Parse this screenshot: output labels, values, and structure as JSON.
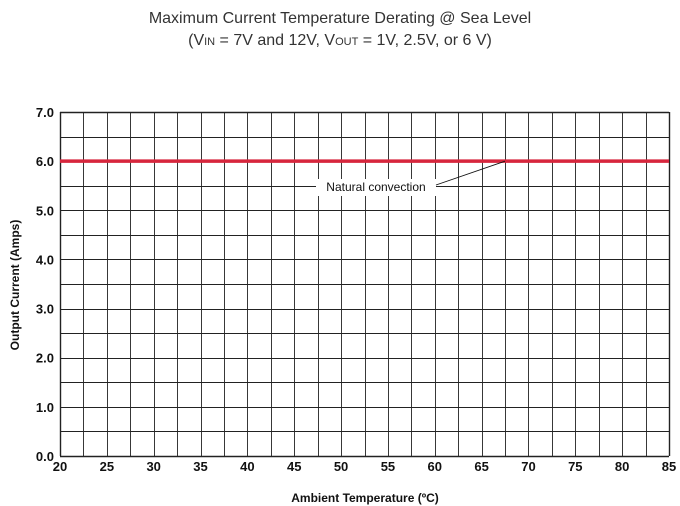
{
  "chart_data": {
    "type": "line",
    "title": "Maximum Current Temperature Derating @ Sea Level",
    "subtitle": {
      "open": "(V",
      "vin_sub": "IN",
      "mid": " = 7V and 12V, V",
      "vout_sub": "OUT",
      "close": " = 1V, 2.5V, or 6 V)"
    },
    "xlabel": "Ambient Temperature (ºC)",
    "ylabel": "Output Current (Amps)",
    "xlim": [
      20,
      85
    ],
    "ylim": [
      0,
      7
    ],
    "x_ticks": [
      "20",
      "25",
      "30",
      "35",
      "40",
      "45",
      "50",
      "55",
      "60",
      "65",
      "70",
      "75",
      "80",
      "85"
    ],
    "y_ticks": [
      "0.0",
      "1.0",
      "2.0",
      "3.0",
      "4.0",
      "5.0",
      "6.0",
      "7.0"
    ],
    "grid": true,
    "series": [
      {
        "name": "Natural convection",
        "color": "#d7263d",
        "x": [
          20,
          85
        ],
        "y": [
          6.0,
          6.0
        ]
      }
    ],
    "annotations": [
      {
        "text": "Natural convection",
        "points_to": {
          "x": 67.5,
          "y": 6.0
        }
      }
    ]
  }
}
